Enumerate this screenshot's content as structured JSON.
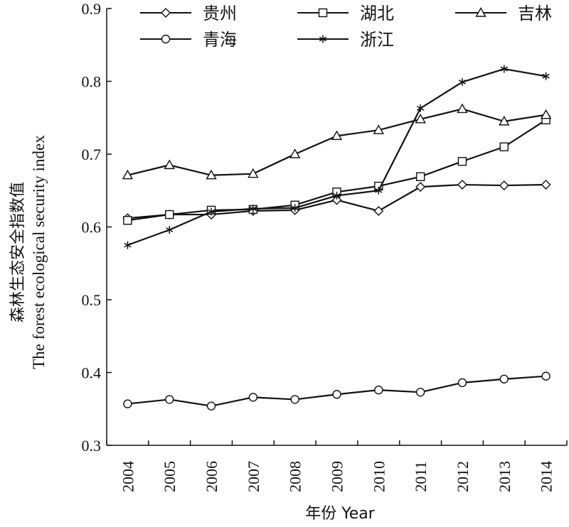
{
  "chart_data": {
    "type": "line",
    "x": [
      "2004",
      "2005",
      "2006",
      "2007",
      "2008",
      "2009",
      "2010",
      "2011",
      "2012",
      "2013",
      "2014"
    ],
    "xlabel": "年份 Year",
    "ylabel_cn": "森林生态安全指数值",
    "ylabel_en": "The forest ecological security index",
    "ylim": [
      0.3,
      0.9
    ],
    "yticks": [
      "0.3",
      "0.4",
      "0.5",
      "0.6",
      "0.7",
      "0.8",
      "0.9"
    ],
    "legend_placement": "top",
    "grid": false,
    "series": [
      {
        "name": "贵州",
        "marker": "diamond",
        "values": [
          0.612,
          0.617,
          0.617,
          0.622,
          0.623,
          0.637,
          0.622,
          0.655,
          0.658,
          0.657,
          0.658
        ]
      },
      {
        "name": "湖北",
        "marker": "square",
        "values": [
          0.609,
          0.617,
          0.623,
          0.624,
          0.63,
          0.648,
          0.656,
          0.669,
          0.69,
          0.71,
          0.747
        ]
      },
      {
        "name": "吉林",
        "marker": "triangle",
        "values": [
          0.671,
          0.685,
          0.671,
          0.673,
          0.7,
          0.725,
          0.733,
          0.748,
          0.762,
          0.745,
          0.754
        ]
      },
      {
        "name": "青海",
        "marker": "circle",
        "values": [
          0.357,
          0.363,
          0.354,
          0.366,
          0.363,
          0.37,
          0.376,
          0.373,
          0.386,
          0.391,
          0.395
        ]
      },
      {
        "name": "浙江",
        "marker": "star",
        "values": [
          0.575,
          0.596,
          0.621,
          0.625,
          0.626,
          0.643,
          0.65,
          0.763,
          0.799,
          0.817,
          0.807
        ]
      }
    ]
  }
}
